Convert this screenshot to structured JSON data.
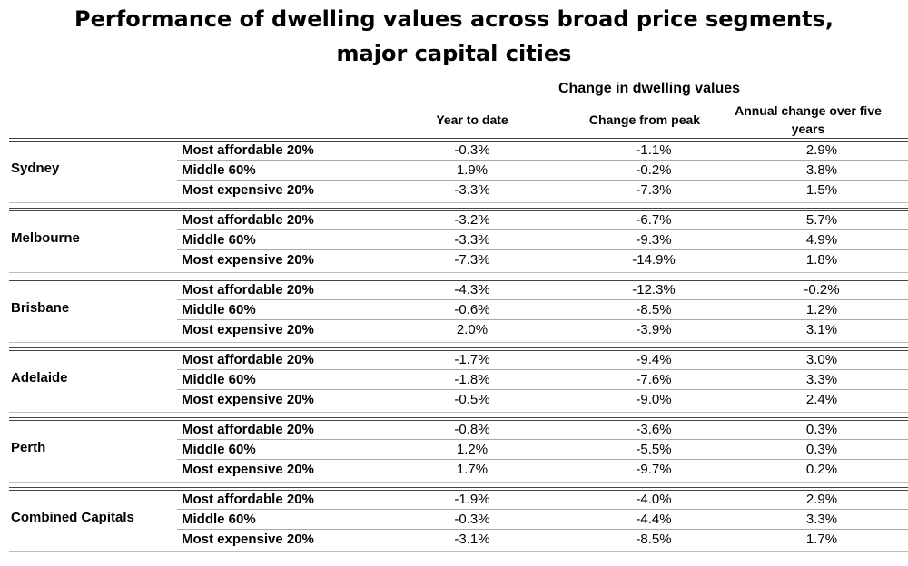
{
  "title": {
    "line1": "Performance of dwelling values across broad price segments,",
    "line2": "major capital cities"
  },
  "chart_data": {
    "type": "table",
    "group_header": "Change in dwelling values",
    "columns": [
      "Year to date",
      "Change from peak",
      "Annual change over five years"
    ],
    "rows": [
      {
        "city": "Sydney",
        "segments": [
          {
            "label": "Most affordable 20%",
            "values": [
              "-0.3%",
              "-1.1%",
              "2.9%"
            ]
          },
          {
            "label": "Middle 60%",
            "values": [
              "1.9%",
              "-0.2%",
              "3.8%"
            ]
          },
          {
            "label": "Most expensive 20%",
            "values": [
              "-3.3%",
              "-7.3%",
              "1.5%"
            ]
          }
        ]
      },
      {
        "city": "Melbourne",
        "segments": [
          {
            "label": "Most affordable 20%",
            "values": [
              "-3.2%",
              "-6.7%",
              "5.7%"
            ]
          },
          {
            "label": "Middle 60%",
            "values": [
              "-3.3%",
              "-9.3%",
              "4.9%"
            ]
          },
          {
            "label": "Most expensive 20%",
            "values": [
              "-7.3%",
              "-14.9%",
              "1.8%"
            ]
          }
        ]
      },
      {
        "city": "Brisbane",
        "segments": [
          {
            "label": "Most affordable 20%",
            "values": [
              "-4.3%",
              "-12.3%",
              "-0.2%"
            ]
          },
          {
            "label": "Middle 60%",
            "values": [
              "-0.6%",
              "-8.5%",
              "1.2%"
            ]
          },
          {
            "label": "Most expensive 20%",
            "values": [
              "2.0%",
              "-3.9%",
              "3.1%"
            ]
          }
        ]
      },
      {
        "city": "Adelaide",
        "segments": [
          {
            "label": "Most affordable 20%",
            "values": [
              "-1.7%",
              "-9.4%",
              "3.0%"
            ]
          },
          {
            "label": "Middle 60%",
            "values": [
              "-1.8%",
              "-7.6%",
              "3.3%"
            ]
          },
          {
            "label": "Most expensive 20%",
            "values": [
              "-0.5%",
              "-9.0%",
              "2.4%"
            ]
          }
        ]
      },
      {
        "city": "Perth",
        "segments": [
          {
            "label": "Most affordable 20%",
            "values": [
              "-0.8%",
              "-3.6%",
              "0.3%"
            ]
          },
          {
            "label": "Middle 60%",
            "values": [
              "1.2%",
              "-5.5%",
              "0.3%"
            ]
          },
          {
            "label": "Most expensive 20%",
            "values": [
              "1.7%",
              "-9.7%",
              "0.2%"
            ]
          }
        ]
      },
      {
        "city": "Combined Capitals",
        "segments": [
          {
            "label": "Most affordable 20%",
            "values": [
              "-1.9%",
              "-4.0%",
              "2.9%"
            ]
          },
          {
            "label": "Middle 60%",
            "values": [
              "-0.3%",
              "-4.4%",
              "3.3%"
            ]
          },
          {
            "label": "Most expensive 20%",
            "values": [
              "-3.1%",
              "-8.5%",
              "1.7%"
            ]
          }
        ]
      }
    ]
  }
}
